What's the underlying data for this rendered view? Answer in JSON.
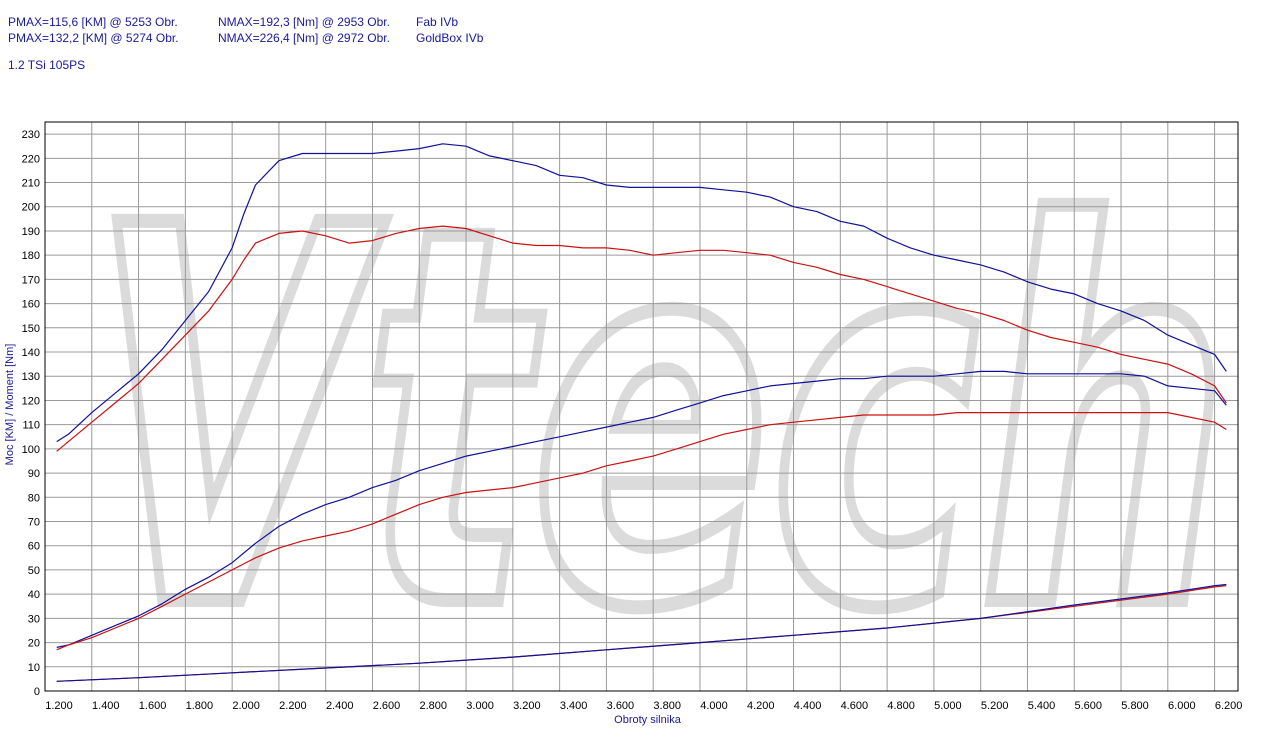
{
  "header": {
    "line1": {
      "pmax": "PMAX=115,6 [KM] @ 5253 Obr.",
      "nmax": "NMAX=192,3 [Nm] @ 2953 Obr.",
      "name": "Fab IVb"
    },
    "line2": {
      "pmax": "PMAX=132,2 [KM] @ 5274 Obr.",
      "nmax": "NMAX=226,4 [Nm] @ 2972 Obr.",
      "name": "GoldBox IVb"
    },
    "subtitle": "1.2 TSi 105PS"
  },
  "colors": {
    "stock": "#cc1111",
    "tuned": "#11119a",
    "grid": "#9a9a9a",
    "watermark": "#d8d8d8"
  },
  "watermark": "Vtech",
  "chart_data": {
    "type": "line",
    "xlabel": "Obroty silnika",
    "ylabel": "Moc [KM] / Moment [Nm]",
    "xlim": [
      1200,
      6300
    ],
    "ylim": [
      0,
      235
    ],
    "x_ticks": [
      1200,
      1400,
      1600,
      1800,
      2000,
      2200,
      2400,
      2600,
      2800,
      3000,
      3200,
      3400,
      3600,
      3800,
      4000,
      4200,
      4400,
      4600,
      4800,
      5000,
      5200,
      5400,
      5600,
      5800,
      6000,
      6200
    ],
    "x_tick_labels": [
      "1.200",
      "1.400",
      "1.600",
      "1.800",
      "2.000",
      "2.200",
      "2.400",
      "2.600",
      "2.800",
      "3.000",
      "3.200",
      "3.400",
      "3.600",
      "3.800",
      "4.000",
      "4.200",
      "4.400",
      "4.600",
      "4.800",
      "5.000",
      "5.200",
      "5.400",
      "5.600",
      "5.800",
      "6.000",
      "6.200"
    ],
    "y_ticks": [
      0,
      10,
      20,
      30,
      40,
      50,
      60,
      70,
      80,
      90,
      100,
      110,
      120,
      130,
      140,
      150,
      160,
      170,
      180,
      190,
      200,
      210,
      220,
      230
    ],
    "grid": true,
    "series": [
      {
        "name": "GoldBox IVb",
        "quantity": "torque",
        "color": "#11119a",
        "x": [
          1250,
          1300,
          1400,
          1500,
          1600,
          1700,
          1800,
          1900,
          2000,
          2050,
          2100,
          2200,
          2300,
          2400,
          2500,
          2600,
          2700,
          2800,
          2900,
          3000,
          3100,
          3200,
          3300,
          3400,
          3500,
          3600,
          3700,
          3800,
          3900,
          4000,
          4100,
          4200,
          4300,
          4400,
          4500,
          4600,
          4700,
          4800,
          4900,
          5000,
          5100,
          5200,
          5300,
          5400,
          5500,
          5600,
          5700,
          5800,
          5900,
          6000,
          6100,
          6200,
          6250
        ],
        "values": [
          103,
          106,
          115,
          123,
          131,
          141,
          153,
          165,
          183,
          197,
          209,
          219,
          222,
          222,
          222,
          222,
          223,
          224,
          226,
          225,
          221,
          219,
          217,
          213,
          212,
          209,
          208,
          208,
          208,
          208,
          207,
          206,
          204,
          200,
          198,
          194,
          192,
          187,
          183,
          180,
          178,
          176,
          173,
          169,
          166,
          164,
          160,
          157,
          153,
          147,
          143,
          139,
          132
        ]
      },
      {
        "name": "Fab IVb",
        "quantity": "torque",
        "color": "#cc1111",
        "x": [
          1250,
          1300,
          1400,
          1500,
          1600,
          1700,
          1800,
          1900,
          2000,
          2050,
          2100,
          2200,
          2300,
          2400,
          2500,
          2600,
          2700,
          2800,
          2900,
          3000,
          3100,
          3200,
          3300,
          3400,
          3500,
          3600,
          3700,
          3800,
          3900,
          4000,
          4100,
          4200,
          4300,
          4400,
          4500,
          4600,
          4700,
          4800,
          4900,
          5000,
          5100,
          5200,
          5300,
          5400,
          5500,
          5600,
          5700,
          5800,
          5900,
          6000,
          6100,
          6200,
          6250
        ],
        "values": [
          99,
          103,
          111,
          119,
          127,
          137,
          147,
          157,
          170,
          178,
          185,
          189,
          190,
          188,
          185,
          186,
          189,
          191,
          192,
          191,
          188,
          185,
          184,
          184,
          183,
          183,
          182,
          180,
          181,
          182,
          182,
          181,
          180,
          177,
          175,
          172,
          170,
          167,
          164,
          161,
          158,
          156,
          153,
          149,
          146,
          144,
          142,
          139,
          137,
          135,
          131,
          126,
          119
        ]
      },
      {
        "name": "GoldBox IVb",
        "quantity": "power",
        "color": "#11119a",
        "x": [
          1250,
          1300,
          1400,
          1500,
          1600,
          1700,
          1800,
          1900,
          2000,
          2100,
          2200,
          2300,
          2400,
          2500,
          2600,
          2700,
          2800,
          2900,
          3000,
          3100,
          3200,
          3300,
          3400,
          3500,
          3600,
          3700,
          3800,
          3900,
          4000,
          4100,
          4200,
          4300,
          4400,
          4500,
          4600,
          4700,
          4800,
          4900,
          5000,
          5100,
          5200,
          5300,
          5400,
          5500,
          5600,
          5700,
          5800,
          5900,
          6000,
          6100,
          6200,
          6250
        ],
        "values": [
          18,
          19,
          23,
          27,
          31,
          36,
          42,
          47,
          53,
          61,
          68,
          73,
          77,
          80,
          84,
          87,
          91,
          94,
          97,
          99,
          101,
          103,
          105,
          107,
          109,
          111,
          113,
          116,
          119,
          122,
          124,
          126,
          127,
          128,
          129,
          129,
          130,
          130,
          130,
          131,
          132,
          132,
          131,
          131,
          131,
          131,
          131,
          130,
          126,
          125,
          124,
          118
        ]
      },
      {
        "name": "Fab IVb",
        "quantity": "power",
        "color": "#cc1111",
        "x": [
          1250,
          1300,
          1400,
          1500,
          1600,
          1700,
          1800,
          1900,
          2000,
          2100,
          2200,
          2300,
          2400,
          2500,
          2600,
          2700,
          2800,
          2900,
          3000,
          3100,
          3200,
          3300,
          3400,
          3500,
          3600,
          3700,
          3800,
          3900,
          4000,
          4100,
          4200,
          4300,
          4400,
          4500,
          4600,
          4700,
          4800,
          4900,
          5000,
          5100,
          5200,
          5300,
          5400,
          5500,
          5600,
          5700,
          5800,
          5900,
          6000,
          6100,
          6200,
          6250
        ],
        "values": [
          17,
          19,
          22,
          26,
          30,
          35,
          40,
          45,
          50,
          55,
          59,
          62,
          64,
          66,
          69,
          73,
          77,
          80,
          82,
          83,
          84,
          86,
          88,
          90,
          93,
          95,
          97,
          100,
          103,
          106,
          108,
          110,
          111,
          112,
          113,
          114,
          114,
          114,
          114,
          115,
          115,
          115,
          115,
          115,
          115,
          115,
          115,
          115,
          115,
          113,
          111,
          108
        ]
      },
      {
        "name": "Fab IVb",
        "quantity": "losses",
        "color": "#cc1111",
        "x": [
          1250,
          1600,
          2000,
          2400,
          2800,
          3200,
          3600,
          4000,
          4400,
          4800,
          5200,
          5600,
          6000,
          6200,
          6250
        ],
        "values": [
          4,
          5.5,
          7.5,
          9.5,
          11.5,
          14,
          17,
          20,
          23,
          26,
          30,
          35,
          40,
          43,
          43.5
        ]
      },
      {
        "name": "GoldBox IVb",
        "quantity": "losses",
        "color": "#11119a",
        "x": [
          1250,
          1600,
          2000,
          2400,
          2800,
          3200,
          3600,
          4000,
          4400,
          4800,
          5200,
          5600,
          6000,
          6200,
          6250
        ],
        "values": [
          4,
          5.5,
          7.5,
          9.5,
          11.5,
          14,
          17,
          20,
          23,
          26,
          30,
          35.5,
          40.5,
          43.5,
          44
        ]
      }
    ]
  }
}
